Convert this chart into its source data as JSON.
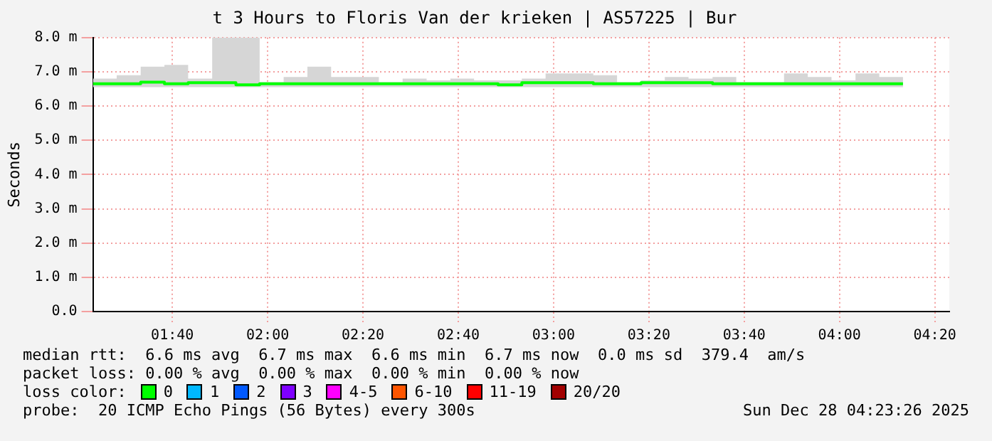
{
  "chart_data": {
    "type": "step",
    "title": "t 3 Hours to Floris Van der krieken | AS57225 | Bur",
    "ylabel": "Seconds",
    "legend_title": "loss color:",
    "legend": "bottom",
    "x": [
      1.389,
      1.472,
      1.556,
      1.639,
      1.722,
      1.806,
      1.889,
      1.972,
      2.056,
      2.139,
      2.222,
      2.306,
      2.389,
      2.472,
      2.556,
      2.639,
      2.722,
      2.806,
      2.889,
      2.972,
      3.056,
      3.139,
      3.222,
      3.306,
      3.389,
      3.472,
      3.556,
      3.639,
      3.722,
      3.806,
      3.889,
      3.972,
      4.056,
      4.139,
      4.222
    ],
    "series": [
      {
        "name": "0",
        "color": "#00ff00",
        "values": [
          6.65,
          6.65,
          6.65,
          6.7,
          6.65,
          6.68,
          6.68,
          6.62,
          6.65,
          6.65,
          6.65,
          6.65,
          6.65,
          6.65,
          6.65,
          6.65,
          6.65,
          6.65,
          6.62,
          6.68,
          6.68,
          6.68,
          6.65,
          6.65,
          6.68,
          6.68,
          6.68,
          6.65,
          6.65,
          6.65,
          6.65,
          6.65,
          6.65,
          6.65,
          6.65
        ],
        "lower": [
          6.55,
          6.55,
          6.55,
          6.55,
          6.55,
          6.55,
          6.55,
          6.55,
          6.55,
          6.55,
          6.55,
          6.55,
          6.55,
          6.55,
          6.55,
          6.55,
          6.55,
          6.55,
          6.55,
          6.55,
          6.55,
          6.55,
          6.55,
          6.55,
          6.55,
          6.55,
          6.55,
          6.55,
          6.55,
          6.55,
          6.55,
          6.55,
          6.55,
          6.55,
          6.55
        ],
        "upper": [
          6.8,
          6.9,
          7.15,
          7.2,
          6.8,
          8.0,
          8.0,
          6.7,
          6.85,
          7.15,
          6.85,
          6.85,
          6.7,
          6.8,
          6.75,
          6.8,
          6.75,
          6.75,
          6.8,
          6.95,
          6.95,
          6.9,
          6.7,
          6.75,
          6.85,
          6.8,
          6.85,
          6.7,
          6.7,
          6.95,
          6.85,
          6.75,
          6.95,
          6.85,
          6.85
        ]
      },
      {
        "name": "1",
        "color": "#00b8ff",
        "values": [
          null,
          null,
          null,
          null,
          null,
          null,
          null,
          null,
          null,
          null,
          null,
          null,
          null,
          null,
          null,
          null,
          null,
          null,
          null,
          null,
          null,
          null,
          null,
          null,
          null,
          null,
          null,
          null,
          null,
          null,
          null,
          null,
          null,
          null,
          null
        ]
      },
      {
        "name": "2",
        "color": "#0059ff",
        "values": [
          null,
          null,
          null,
          null,
          null,
          null,
          null,
          null,
          null,
          null,
          null,
          null,
          null,
          null,
          null,
          null,
          null,
          null,
          null,
          null,
          null,
          null,
          null,
          null,
          null,
          null,
          null,
          null,
          null,
          null,
          null,
          null,
          null,
          null,
          null
        ]
      },
      {
        "name": "3",
        "color": "#7e00ff",
        "values": [
          null,
          null,
          null,
          null,
          null,
          null,
          null,
          null,
          null,
          null,
          null,
          null,
          null,
          null,
          null,
          null,
          null,
          null,
          null,
          null,
          null,
          null,
          null,
          null,
          null,
          null,
          null,
          null,
          null,
          null,
          null,
          null,
          null,
          null,
          null
        ]
      },
      {
        "name": "4-5",
        "color": "#ff00ff",
        "values": [
          null,
          null,
          null,
          null,
          null,
          null,
          null,
          null,
          null,
          null,
          null,
          null,
          null,
          null,
          null,
          null,
          null,
          null,
          null,
          null,
          null,
          null,
          null,
          null,
          null,
          null,
          null,
          null,
          null,
          null,
          null,
          null,
          null,
          null,
          null
        ]
      },
      {
        "name": "6-10",
        "color": "#ff5500",
        "values": [
          null,
          null,
          null,
          null,
          null,
          null,
          null,
          null,
          null,
          null,
          null,
          null,
          null,
          null,
          null,
          null,
          null,
          null,
          null,
          null,
          null,
          null,
          null,
          null,
          null,
          null,
          null,
          null,
          null,
          null,
          null,
          null,
          null,
          null,
          null
        ]
      },
      {
        "name": "11-19",
        "color": "#ff0000",
        "values": [
          null,
          null,
          null,
          null,
          null,
          null,
          null,
          null,
          null,
          null,
          null,
          null,
          null,
          null,
          null,
          null,
          null,
          null,
          null,
          null,
          null,
          null,
          null,
          null,
          null,
          null,
          null,
          null,
          null,
          null,
          null,
          null,
          null,
          null,
          null
        ]
      },
      {
        "name": "20/20",
        "color": "#a10000",
        "values": [
          null,
          null,
          null,
          null,
          null,
          null,
          null,
          null,
          null,
          null,
          null,
          null,
          null,
          null,
          null,
          null,
          null,
          null,
          null,
          null,
          null,
          null,
          null,
          null,
          null,
          null,
          null,
          null,
          null,
          null,
          null,
          null,
          null,
          null,
          null
        ]
      }
    ],
    "xlim": [
      1.389,
      4.384
    ],
    "xticks": [
      {
        "value": 1.6667,
        "label": "01:40"
      },
      {
        "value": 2,
        "label": "02:00"
      },
      {
        "value": 2.3333,
        "label": "02:20"
      },
      {
        "value": 2.6667,
        "label": "02:40"
      },
      {
        "value": 3,
        "label": "03:00"
      },
      {
        "value": 3.3333,
        "label": "03:20"
      },
      {
        "value": 3.6667,
        "label": "03:40"
      },
      {
        "value": 4,
        "label": "04:00"
      },
      {
        "value": 4.3333,
        "label": "04:20"
      }
    ],
    "ylim": [
      0,
      8
    ],
    "yticks": [
      {
        "value": 0,
        "label": "0.0"
      },
      {
        "value": 1,
        "label": "1.0 m"
      },
      {
        "value": 2,
        "label": "2.0 m"
      },
      {
        "value": 3,
        "label": "3.0 m"
      },
      {
        "value": 4,
        "label": "4.0 m"
      },
      {
        "value": 5,
        "label": "5.0 m"
      },
      {
        "value": 6,
        "label": "6.0 m"
      },
      {
        "value": 7,
        "label": "7.0 m"
      },
      {
        "value": 8,
        "label": "8.0 m"
      }
    ],
    "grid": true,
    "marker": "none",
    "line_style": "solid",
    "annotations": [
      "median rtt:  6.6 ms avg  6.7 ms max  6.6 ms min  6.7 ms now  0.0 ms sd  379.4  am/s",
      "packet loss: 0.00 % avg  0.00 % max  0.00 % min  0.00 % now",
      "probe:  20 ICMP Echo Pings (56 Bytes) every 300s",
      "Sun Dec 28 04:23:26 2025"
    ]
  }
}
